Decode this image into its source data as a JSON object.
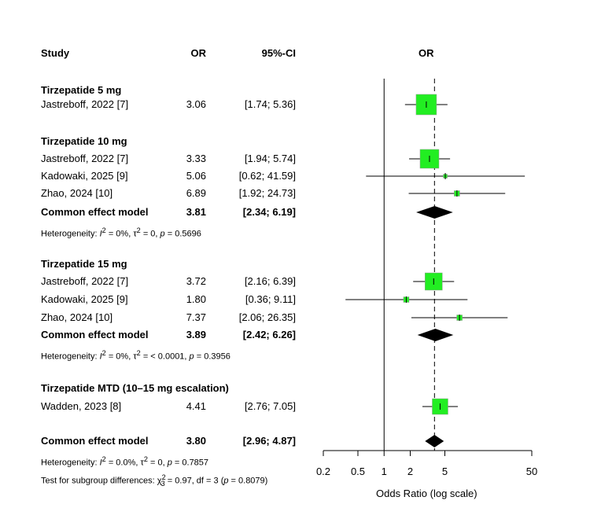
{
  "chart_data": {
    "type": "forest",
    "headers": {
      "study": "Study",
      "or": "OR",
      "ci": "95%-CI",
      "plot": "OR"
    },
    "x_axis": {
      "label": "Odds Ratio (log scale)",
      "scale": "log",
      "ticks": [
        0.2,
        0.5,
        1,
        2,
        5,
        50
      ],
      "tick_labels": [
        "0.2",
        "0.5",
        "1",
        "2",
        "5",
        "50"
      ],
      "null_line": 1,
      "overall_line": 3.8
    },
    "groups": [
      {
        "title": "Tirzepatide 5 mg",
        "studies": [
          {
            "name": "Jastreboff, 2022 [7]",
            "or": 3.06,
            "lo": 1.74,
            "hi": 5.36,
            "or_text": "3.06",
            "ci_text": "[1.74;  5.36]",
            "box": 26
          }
        ]
      },
      {
        "title": "Tirzepatide 10 mg",
        "studies": [
          {
            "name": "Jastreboff, 2022 [7]",
            "or": 3.33,
            "lo": 1.94,
            "hi": 5.74,
            "or_text": "3.33",
            "ci_text": "[1.94;  5.74]",
            "box": 24
          },
          {
            "name": "Kadowaki, 2025 [9]",
            "or": 5.06,
            "lo": 0.62,
            "hi": 41.59,
            "or_text": "5.06",
            "ci_text": "[0.62; 41.59]",
            "box": 5
          },
          {
            "name": "Zhao, 2024 [10]",
            "or": 6.89,
            "lo": 1.92,
            "hi": 24.73,
            "or_text": "6.89",
            "ci_text": "[1.92; 24.73]",
            "box": 7
          }
        ],
        "pooled": {
          "label": "Common effect model",
          "or": 3.81,
          "lo": 2.34,
          "hi": 6.19,
          "or_text": "3.81",
          "ci_text": "[2.34;  6.19]"
        },
        "heterogeneity": {
          "lead": "Heterogeneity: ",
          "i2_val": " = 0%, ",
          "tau2_val": " = 0, ",
          "p_val": " = 0.5696"
        }
      },
      {
        "title": "Tirzepatide 15 mg",
        "studies": [
          {
            "name": "Jastreboff, 2022 [7]",
            "or": 3.72,
            "lo": 2.16,
            "hi": 6.39,
            "or_text": "3.72",
            "ci_text": "[2.16;  6.39]",
            "box": 22
          },
          {
            "name": "Kadowaki, 2025 [9]",
            "or": 1.8,
            "lo": 0.36,
            "hi": 9.11,
            "or_text": "1.80",
            "ci_text": "[0.36;  9.11]",
            "box": 7
          },
          {
            "name": "Zhao, 2024 [10]",
            "or": 7.37,
            "lo": 2.06,
            "hi": 26.35,
            "or_text": "7.37",
            "ci_text": "[2.06; 26.35]",
            "box": 7
          }
        ],
        "pooled": {
          "label": "Common effect model",
          "or": 3.89,
          "lo": 2.42,
          "hi": 6.26,
          "or_text": "3.89",
          "ci_text": "[2.42;  6.26]"
        },
        "heterogeneity": {
          "lead": "Heterogeneity: ",
          "i2_val": " = 0%, ",
          "tau2_val": " = < 0.0001, ",
          "p_val": " = 0.3956"
        }
      },
      {
        "title": "Tirzepatide MTD (10–15 mg escalation)",
        "studies": [
          {
            "name": "Wadden, 2023 [8]",
            "or": 4.41,
            "lo": 2.76,
            "hi": 7.05,
            "or_text": "4.41",
            "ci_text": "[2.76;  7.05]",
            "box": 20
          }
        ]
      }
    ],
    "overall": {
      "label": "Common effect model",
      "or": 3.8,
      "lo": 2.96,
      "hi": 4.87,
      "or_text": "3.80",
      "ci_text": "[2.96;  4.87]",
      "heterogeneity": {
        "lead": "Heterogeneity: ",
        "i2_val": " = 0.0%, ",
        "tau2_val": " = 0, ",
        "p_val": " = 0.7857"
      },
      "subgroup_test": {
        "lead": "Test for subgroup differences: ",
        "chi_val": " = 0.97, df = 3 (",
        "p_val": " = 0.8079)"
      }
    },
    "colors": {
      "box": "#22ee22",
      "diamond": "#000000",
      "line": "#000000"
    }
  }
}
